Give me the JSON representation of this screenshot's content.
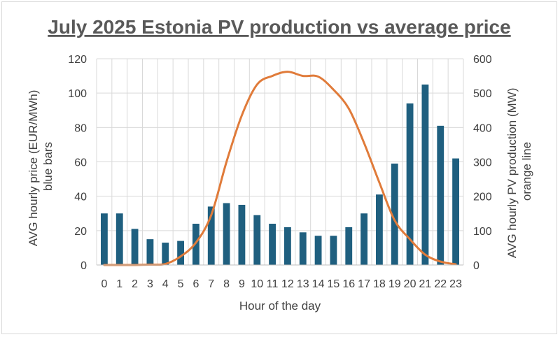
{
  "chart_data": {
    "type": "bar",
    "title": "July 2025  Estonia PV production vs average price",
    "xlabel": "Hour of the day",
    "ylabel_lines": [
      "AVG hourly price (EUR/MWh)",
      "blue bars"
    ],
    "y2label_lines": [
      "AVG hourly PV production (MW)",
      "orange line"
    ],
    "ylim": [
      0,
      120
    ],
    "y_ticks": [
      0,
      20,
      40,
      60,
      80,
      100,
      120
    ],
    "y2lim": [
      0,
      600
    ],
    "y2_ticks": [
      0,
      100,
      200,
      300,
      400,
      500,
      600
    ],
    "grid": true,
    "categories": [
      "0",
      "1",
      "2",
      "3",
      "4",
      "5",
      "6",
      "7",
      "8",
      "9",
      "10",
      "11",
      "12",
      "13",
      "14",
      "15",
      "16",
      "17",
      "18",
      "19",
      "20",
      "21",
      "22",
      "23"
    ],
    "series": [
      {
        "type": "bar",
        "axis": "left",
        "color": "#1f5f7f",
        "values": [
          30,
          30,
          21,
          15,
          13,
          14,
          24,
          34,
          36,
          35,
          29,
          24,
          22,
          19,
          17,
          17,
          22,
          30,
          41,
          59,
          94,
          105,
          81,
          62
        ]
      },
      {
        "type": "line",
        "axis": "right",
        "color": "#e07b3a",
        "values": [
          0,
          0,
          0,
          1,
          3,
          25,
          65,
          145,
          300,
          435,
          525,
          550,
          562,
          550,
          548,
          510,
          455,
          355,
          240,
          130,
          75,
          30,
          10,
          2
        ]
      }
    ]
  }
}
